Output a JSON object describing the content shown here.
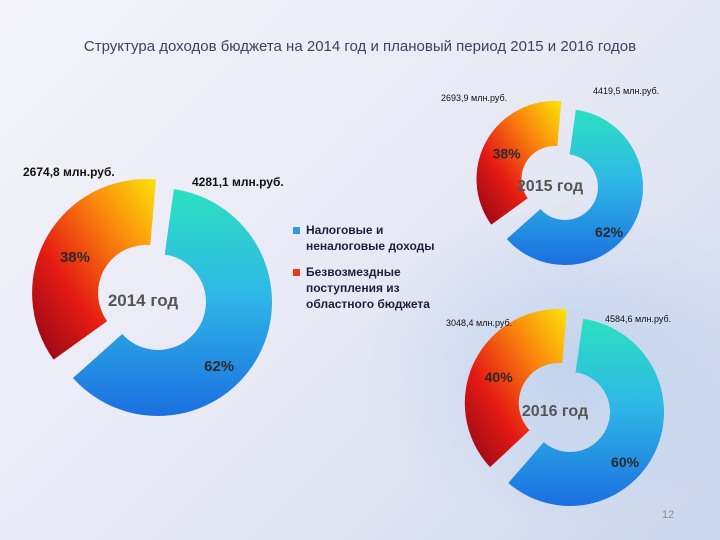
{
  "title": "Структура доходов бюджета на 2014 год и плановый период 2015 и 2016 годов",
  "page_number": "12",
  "legend": [
    {
      "label": "Налоговые и неналоговые доходы",
      "color": "#2d9be0"
    },
    {
      "label": "Безвозмездные поступления из областного бюджета",
      "color": "#e83a1a"
    }
  ],
  "chart_data": [
    {
      "type": "donut",
      "center_label": "2014 год",
      "categories": [
        "Налоговые и неналоговые доходы",
        "Безвозмездные поступления из областного бюджета"
      ],
      "values": [
        62,
        38
      ],
      "value_labels": [
        "62%",
        "38%"
      ],
      "amounts": [
        "4281,1 млн.руб.",
        "2674,8 млн.руб."
      ]
    },
    {
      "type": "donut",
      "center_label": "2015 год",
      "categories": [
        "Налоговые и неналоговые доходы",
        "Безвозмездные поступления из областного бюджета"
      ],
      "values": [
        62,
        38
      ],
      "value_labels": [
        "62%",
        "38%"
      ],
      "amounts": [
        "4419,5 млн.руб.",
        "2693,9 млн.руб."
      ]
    },
    {
      "type": "donut",
      "center_label": "2016 год",
      "categories": [
        "Налоговые и неналоговые доходы",
        "Безвозмездные поступления из областного бюджета"
      ],
      "values": [
        60,
        40
      ],
      "value_labels": [
        "60%",
        "40%"
      ],
      "amounts": [
        "4584,6 млн.руб.",
        "3048,4 млн.руб."
      ]
    }
  ]
}
